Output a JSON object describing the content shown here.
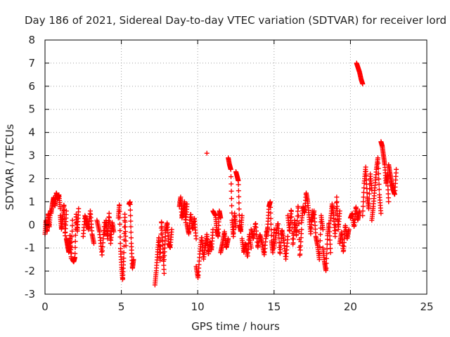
{
  "chart_data": {
    "type": "scatter",
    "title": "Day 186 of 2021, Sidereal Day-to-day VTEC variation (SDTVAR) for receiver lord",
    "xlabel": "GPS time / hours",
    "ylabel": "SDTVAR / TECUs",
    "xlim": [
      0,
      25
    ],
    "ylim": [
      -3,
      8
    ],
    "x_ticks": [
      "0",
      "5",
      "10",
      "15",
      "20",
      "25"
    ],
    "y_ticks": [
      "-3",
      "-2",
      "-1",
      "0",
      "1",
      "2",
      "3",
      "4",
      "5",
      "6",
      "7",
      "8"
    ],
    "grid": true,
    "marker": "+",
    "color": "#ff0000",
    "series": [
      {
        "name": "SDTVAR",
        "segments": [
          {
            "x0": 0.0,
            "x1": 0.35,
            "y": [
              -0.4,
              0.2,
              -0.3,
              0.5,
              -0.1,
              0.6
            ]
          },
          {
            "x0": 0.4,
            "x1": 1.0,
            "y": [
              0.5,
              0.9,
              1.2,
              0.8,
              1.4,
              1.1,
              1.3,
              0.7
            ]
          },
          {
            "x0": 1.0,
            "x1": 1.4,
            "y": [
              0.4,
              -0.2,
              0.3,
              0.9,
              -0.5,
              0.6
            ]
          },
          {
            "x0": 1.4,
            "x1": 1.8,
            "y": [
              -0.6,
              -0.9,
              -1.2,
              -0.4,
              -1.5,
              0.2
            ]
          },
          {
            "x0": 1.8,
            "x1": 2.2,
            "y": [
              -1.5,
              -1.6,
              -1.4,
              0.5,
              -0.3,
              0.7
            ]
          },
          {
            "x0": 2.5,
            "x1": 3.2,
            "y": [
              -0.5,
              0.4,
              0.1,
              -0.2,
              0.6,
              -0.4,
              -0.8
            ]
          },
          {
            "x0": 3.4,
            "x1": 3.9,
            "y": [
              0.2,
              -0.3,
              -1.3,
              0.1
            ]
          },
          {
            "x0": 3.9,
            "x1": 4.5,
            "y": [
              -0.4,
              0.2,
              -0.6,
              0.5,
              -0.8,
              0.1,
              -0.3
            ]
          },
          {
            "x0": 4.8,
            "x1": 5.3,
            "y": [
              0.3,
              0.9,
              -1.0,
              -1.8,
              -2.4,
              -1.4,
              0.5,
              -0.9
            ]
          },
          {
            "x0": 5.5,
            "x1": 5.8,
            "y": [
              0.9,
              1.0,
              -0.8,
              -1.9,
              -1.5
            ]
          },
          {
            "x0": 7.2,
            "x1": 7.8,
            "y": [
              -2.6,
              -2.0,
              -1.2,
              -0.5,
              -1.6,
              0.2,
              -0.9,
              -2.1
            ]
          },
          {
            "x0": 7.8,
            "x1": 8.3,
            "y": [
              -1.5,
              -0.3,
              0.1,
              -0.8,
              -1.0,
              -0.2
            ]
          },
          {
            "x0": 8.8,
            "x1": 9.3,
            "y": [
              0.8,
              1.2,
              0.3,
              0.6,
              1.0,
              0.1,
              0.9
            ]
          },
          {
            "x0": 9.3,
            "x1": 9.9,
            "y": [
              0.0,
              -0.4,
              0.5,
              -0.2,
              0.3,
              -0.6
            ]
          },
          {
            "x0": 9.9,
            "x1": 10.5,
            "y": [
              -1.8,
              -2.3,
              -1.2,
              -0.5,
              -1.5,
              -0.8
            ]
          },
          {
            "x0": 10.5,
            "x1": 11.0,
            "y": [
              -1.0,
              -0.4,
              -1.3,
              -0.7,
              -1.1,
              -0.2
            ]
          },
          {
            "x0": 10.6,
            "x1": 10.6,
            "y": [
              3.1
            ]
          },
          {
            "x0": 11.0,
            "x1": 11.5,
            "y": [
              0.6,
              0.5,
              0.4,
              -0.2,
              -0.5,
              0.6,
              0.3
            ]
          },
          {
            "x0": 11.5,
            "x1": 12.0,
            "y": [
              -1.2,
              -0.8,
              -0.3,
              -1.0,
              -0.6
            ]
          },
          {
            "x0": 12.0,
            "x1": 12.5,
            "y": [
              2.9,
              2.6,
              2.4,
              0.2,
              -0.5,
              0.5,
              -0.1
            ]
          },
          {
            "x0": 12.5,
            "x1": 12.9,
            "y": [
              2.3,
              2.1,
              1.9,
              0.0,
              -0.3,
              0.4
            ]
          },
          {
            "x0": 12.9,
            "x1": 13.5,
            "y": [
              -0.6,
              -1.2,
              -0.8,
              -1.4,
              -0.4,
              -1.0
            ]
          },
          {
            "x0": 13.5,
            "x1": 14.5,
            "y": [
              -0.2,
              -0.6,
              0.1,
              -1.0,
              -0.4,
              -0.8,
              -1.3,
              -0.3
            ]
          },
          {
            "x0": 14.5,
            "x1": 15.0,
            "y": [
              -0.5,
              -0.1,
              0.8,
              1.0,
              -0.7,
              -1.2,
              -0.2
            ]
          },
          {
            "x0": 15.0,
            "x1": 15.9,
            "y": [
              -1.0,
              -0.4,
              0.1,
              -1.3,
              -0.2,
              -0.7,
              -1.5,
              -0.5
            ]
          },
          {
            "x0": 15.9,
            "x1": 16.8,
            "y": [
              0.4,
              -0.3,
              0.7,
              -0.9,
              0.2,
              -0.5,
              0.9,
              -1.4,
              -0.2
            ]
          },
          {
            "x0": 16.8,
            "x1": 17.5,
            "y": [
              0.1,
              0.8,
              0.5,
              1.4,
              1.0,
              0.3,
              -0.4,
              0.6
            ]
          },
          {
            "x0": 17.5,
            "x1": 18.2,
            "y": [
              0.2,
              0.6,
              -0.5,
              -0.9,
              -1.5,
              0.4,
              -0.2
            ]
          },
          {
            "x0": 18.2,
            "x1": 18.7,
            "y": [
              -1.0,
              -1.6,
              -2.0,
              -0.5,
              0.1,
              -1.2
            ]
          },
          {
            "x0": 18.7,
            "x1": 19.3,
            "y": [
              0.2,
              0.9,
              0.4,
              -0.5,
              1.2,
              -0.2,
              0.6
            ]
          },
          {
            "x0": 19.3,
            "x1": 19.9,
            "y": [
              -0.8,
              -0.3,
              -1.2,
              0.0,
              -0.6,
              -0.2
            ]
          },
          {
            "x0": 20.0,
            "x1": 20.6,
            "y": [
              0.3,
              0.5,
              -0.1,
              0.8,
              0.2,
              0.6
            ]
          },
          {
            "x0": 20.4,
            "x1": 20.8,
            "y": [
              7.0,
              6.8,
              6.6,
              6.3,
              6.1
            ]
          },
          {
            "x0": 20.8,
            "x1": 21.4,
            "y": [
              0.4,
              1.8,
              2.5,
              1.2,
              0.7,
              2.2,
              1.5
            ]
          },
          {
            "x0": 21.4,
            "x1": 22.0,
            "y": [
              0.2,
              0.8,
              1.6,
              2.4,
              2.9,
              1.3,
              0.5
            ]
          },
          {
            "x0": 22.0,
            "x1": 22.5,
            "y": [
              3.6,
              3.4,
              3.0,
              2.6,
              1.8,
              2.2,
              1.0
            ]
          },
          {
            "x0": 22.5,
            "x1": 23.0,
            "y": [
              2.6,
              2.2,
              1.8,
              1.5,
              1.3,
              2.4
            ]
          }
        ]
      }
    ]
  }
}
